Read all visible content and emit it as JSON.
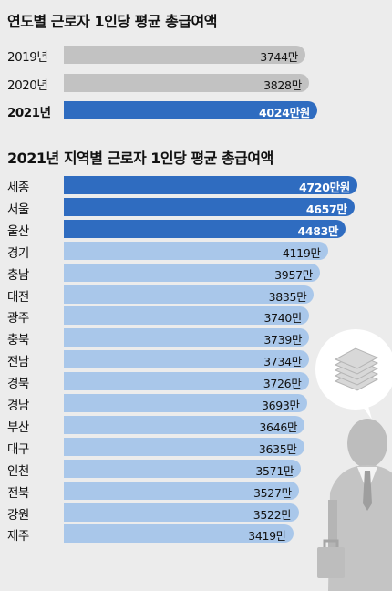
{
  "chart_data": [
    {
      "type": "bar",
      "orientation": "horizontal",
      "title": "연도별 근로자 1인당 평균 총급여액",
      "categories": [
        "2019년",
        "2020년",
        "2021년"
      ],
      "values": [
        3744,
        3828,
        4024
      ],
      "value_labels": [
        "3744만",
        "3828만",
        "4024만원"
      ],
      "highlight": [
        false,
        false,
        true
      ],
      "colors": {
        "normal": "#c2c2c2",
        "highlight": "#2f6cc0"
      }
    },
    {
      "type": "bar",
      "orientation": "horizontal",
      "title": "2021년 지역별 근로자 1인당 평균 총급여액",
      "categories": [
        "세종",
        "서울",
        "울산",
        "경기",
        "충남",
        "대전",
        "광주",
        "충북",
        "전남",
        "경북",
        "경남",
        "부산",
        "대구",
        "인천",
        "전북",
        "강원",
        "제주"
      ],
      "values": [
        4720,
        4657,
        4483,
        4119,
        3957,
        3835,
        3740,
        3739,
        3734,
        3726,
        3693,
        3646,
        3635,
        3571,
        3527,
        3522,
        3419
      ],
      "value_labels": [
        "4720만원",
        "4657만",
        "4483만",
        "4119만",
        "3957만",
        "3835만",
        "3740만",
        "3739만",
        "3734만",
        "3726만",
        "3693만",
        "3646만",
        "3635만",
        "3571만",
        "3527만",
        "3522만",
        "3419만"
      ],
      "highlight": [
        true,
        true,
        true,
        false,
        false,
        false,
        false,
        false,
        false,
        false,
        false,
        false,
        false,
        false,
        false,
        false,
        false
      ],
      "colors": {
        "normal": "#a9c7ea",
        "highlight": "#2f6cc0"
      }
    }
  ]
}
